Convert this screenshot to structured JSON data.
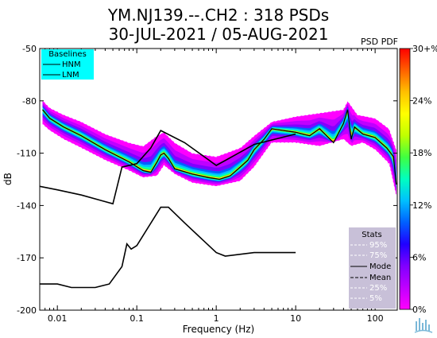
{
  "chart_data": {
    "type": "heatmap",
    "title_line1": "YM.NJ139.--.CH2 : 318 PSDs",
    "title_line2": "30-JUL-2021 / 05-AUG-2021",
    "xlabel": "Frequency (Hz)",
    "ylabel": "dB",
    "x_scale": "log",
    "xlim": [
      0.006,
      190
    ],
    "ylim": [
      -200,
      -50
    ],
    "x_ticks": [
      0.01,
      0.1,
      1,
      10,
      100
    ],
    "x_tick_labels": [
      "0.01",
      "0.1",
      "1",
      "10",
      "100"
    ],
    "y_ticks": [
      -50,
      -80,
      -110,
      -140,
      -170,
      -200
    ],
    "y_tick_labels": [
      "-50",
      "-80",
      "-110",
      "-140",
      "-170",
      "-200"
    ],
    "colorbar": {
      "label": "PSD PDF",
      "ticks": [
        0,
        6,
        12,
        18,
        24,
        30
      ],
      "tick_labels": [
        "0%",
        "6%",
        "12%",
        "18%",
        "24%",
        "30+%"
      ],
      "colors": [
        "#ff00ff",
        "#c000ff",
        "#8000ff",
        "#2000ff",
        "#0060ff",
        "#00c0ff",
        "#00ffc0",
        "#40ff40",
        "#c0ff00",
        "#ffff00",
        "#ffc000",
        "#ff6000",
        "#ff0000"
      ]
    },
    "baselines_legend": {
      "title": "Baselines",
      "entries": [
        "HNM",
        "LNM"
      ],
      "background": "#00ffff"
    },
    "stats_legend": {
      "title": "Stats",
      "entries": [
        "95%",
        "75%",
        "Mode",
        "Mean",
        "25%",
        "5%"
      ],
      "background": "#c8c0d8"
    },
    "nhnm": {
      "freq": [
        0.006,
        0.01,
        0.02,
        0.05,
        0.065,
        0.1,
        0.15,
        0.2,
        0.4,
        1,
        3,
        10
      ],
      "db": [
        -129,
        -131,
        -134,
        -139,
        -118,
        -116,
        -107,
        -97,
        -104,
        -117,
        -105,
        -99
      ]
    },
    "nlnm": {
      "freq": [
        0.006,
        0.01,
        0.015,
        0.03,
        0.045,
        0.065,
        0.075,
        0.085,
        0.1,
        0.2,
        0.25,
        0.4,
        1,
        1.3,
        3,
        10
      ],
      "db": [
        -185,
        -185,
        -187,
        -187,
        -185,
        -175,
        -162,
        -165,
        -163,
        -141,
        -141,
        -150,
        -167,
        -169,
        -167,
        -167
      ]
    },
    "mode": {
      "freq": [
        0.0065,
        0.008,
        0.012,
        0.02,
        0.04,
        0.08,
        0.12,
        0.15,
        0.18,
        0.2,
        0.22,
        0.25,
        0.3,
        0.5,
        0.8,
        1.1,
        1.5,
        2,
        2.5,
        3,
        4,
        5,
        7,
        10,
        15,
        20,
        30,
        40,
        45,
        50,
        55,
        70,
        100,
        140,
        170,
        185
      ],
      "db": [
        -85,
        -90,
        -95,
        -100,
        -108,
        -115,
        -120,
        -121,
        -115,
        -111,
        -110,
        -113,
        -119,
        -122,
        -124,
        -125,
        -123,
        -118,
        -114,
        -108,
        -102,
        -96,
        -97,
        -98,
        -100,
        -96,
        -104,
        -93,
        -85,
        -102,
        -95,
        -99,
        -101,
        -107,
        -112,
        -128
      ]
    },
    "p95": {
      "freq": [
        0.006,
        0.008,
        0.012,
        0.02,
        0.04,
        0.08,
        0.12,
        0.18,
        0.22,
        0.3,
        0.5,
        1,
        2,
        3,
        5,
        10,
        20,
        40,
        45,
        60,
        100,
        150,
        185
      ],
      "db": [
        -78,
        -84,
        -88,
        -92,
        -99,
        -104,
        -106,
        -100,
        -98,
        -104,
        -110,
        -112,
        -107,
        -100,
        -92,
        -89,
        -87,
        -85,
        -80,
        -88,
        -90,
        -96,
        -108
      ]
    },
    "p05": {
      "freq": [
        0.006,
        0.008,
        0.012,
        0.02,
        0.04,
        0.08,
        0.12,
        0.18,
        0.22,
        0.3,
        0.5,
        1,
        2,
        3,
        5,
        10,
        20,
        40,
        50,
        70,
        100,
        150,
        185
      ],
      "db": [
        -92,
        -97,
        -102,
        -107,
        -114,
        -120,
        -124,
        -123,
        -117,
        -122,
        -127,
        -129,
        -126,
        -118,
        -104,
        -104,
        -106,
        -102,
        -106,
        -104,
        -108,
        -116,
        -135
      ]
    }
  }
}
